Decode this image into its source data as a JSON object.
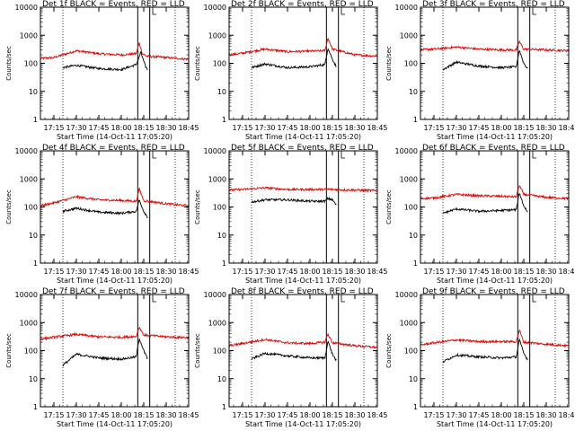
{
  "figure": {
    "background": "#ffffff",
    "axis_color": "#000000"
  },
  "chart_data": {
    "type": "line",
    "x_tick_labels": [
      "17:15",
      "17:30",
      "17:45",
      "18:00",
      "18:15",
      "18:30",
      "18:45"
    ],
    "x_range": [
      "17:06",
      "18:45"
    ],
    "y_scale": "log",
    "y_range": [
      1,
      10000
    ],
    "y_tick_labels": [
      "1",
      "10",
      "100",
      "1000",
      "10000"
    ],
    "ylabel": "Counts/sec",
    "xlabel": "Start Time (14-Oct-11 17:05:20)",
    "series_colors": {
      "Events": "#000000",
      "LLD": "#e00000"
    },
    "markers": {
      "dotted_vertical": [
        "17:21",
        "18:36"
      ],
      "solid_vertical": [
        "18:11",
        "18:19"
      ],
      "small_bracket": "18:21"
    },
    "panels": [
      {
        "title": "Det 1f BLACK = Events, RED = LLD",
        "series": [
          {
            "name": "LLD",
            "x": [
              "17:06",
              "17:15",
              "17:30",
              "17:45",
              "18:00",
              "18:10",
              "18:12",
              "18:14",
              "18:17",
              "18:30",
              "18:45"
            ],
            "y": [
              150,
              160,
              280,
              220,
              200,
              220,
              550,
              220,
              180,
              160,
              140
            ]
          },
          {
            "name": "Events",
            "x": [
              "17:21",
              "17:30",
              "17:45",
              "18:00",
              "18:10",
              "18:12",
              "18:13",
              "18:16",
              "18:18"
            ],
            "y": [
              70,
              85,
              65,
              60,
              90,
              170,
              250,
              80,
              55
            ]
          }
        ]
      },
      {
        "title": "Det 2f BLACK = Events, RED = LLD",
        "series": [
          {
            "name": "LLD",
            "x": [
              "17:06",
              "17:15",
              "17:30",
              "17:45",
              "18:00",
              "18:10",
              "18:12",
              "18:15",
              "18:30",
              "18:45"
            ],
            "y": [
              200,
              230,
              320,
              260,
              270,
              280,
              800,
              320,
              200,
              180
            ]
          },
          {
            "name": "Events",
            "x": [
              "17:21",
              "17:30",
              "17:45",
              "18:00",
              "18:10",
              "18:12",
              "18:15",
              "18:18"
            ],
            "y": [
              70,
              95,
              70,
              75,
              90,
              350,
              140,
              70
            ]
          }
        ]
      },
      {
        "title": "Det 3f BLACK = Events, RED = LLD",
        "series": [
          {
            "name": "LLD",
            "x": [
              "17:06",
              "17:15",
              "17:30",
              "17:45",
              "18:00",
              "18:10",
              "18:12",
              "18:15",
              "18:30",
              "18:45"
            ],
            "y": [
              300,
              320,
              380,
              320,
              300,
              300,
              600,
              320,
              300,
              280
            ]
          },
          {
            "name": "Events",
            "x": [
              "17:21",
              "17:30",
              "17:45",
              "18:00",
              "18:10",
              "18:12",
              "18:15",
              "18:18"
            ],
            "y": [
              60,
              110,
              80,
              70,
              75,
              300,
              100,
              60
            ]
          }
        ]
      },
      {
        "title": "Det 4f BLACK = Events, RED = LLD",
        "series": [
          {
            "name": "LLD",
            "x": [
              "17:06",
              "17:15",
              "17:30",
              "17:45",
              "18:00",
              "18:10",
              "18:12",
              "18:15",
              "18:30",
              "18:45"
            ],
            "y": [
              110,
              140,
              230,
              180,
              170,
              160,
              450,
              170,
              130,
              110
            ]
          },
          {
            "name": "Events",
            "x": [
              "17:21",
              "17:30",
              "17:45",
              "18:00",
              "18:10",
              "18:12",
              "18:15",
              "18:18"
            ],
            "y": [
              70,
              90,
              65,
              60,
              70,
              180,
              70,
              40
            ]
          }
        ]
      },
      {
        "title": "Det 5f BLACK = Events, RED = LLD",
        "series": [
          {
            "name": "LLD",
            "x": [
              "17:06",
              "17:15",
              "17:30",
              "17:45",
              "18:00",
              "18:10",
              "18:12",
              "18:15",
              "18:30",
              "18:45"
            ],
            "y": [
              400,
              420,
              480,
              420,
              420,
              420,
              430,
              420,
              400,
              380
            ]
          },
          {
            "name": "Events",
            "x": [
              "17:21",
              "17:30",
              "17:45",
              "18:00",
              "18:10",
              "18:12",
              "18:15",
              "18:18"
            ],
            "y": [
              150,
              180,
              180,
              160,
              160,
              200,
              180,
              110
            ]
          }
        ]
      },
      {
        "title": "Det 6f BLACK = Events, RED = LLD",
        "series": [
          {
            "name": "LLD",
            "x": [
              "17:06",
              "17:15",
              "17:30",
              "17:45",
              "18:00",
              "18:10",
              "18:12",
              "18:15",
              "18:30",
              "18:45"
            ],
            "y": [
              200,
              210,
              280,
              250,
              240,
              230,
              600,
              280,
              220,
              200
            ]
          },
          {
            "name": "Events",
            "x": [
              "17:21",
              "17:30",
              "17:45",
              "18:00",
              "18:10",
              "18:12",
              "18:15",
              "18:18"
            ],
            "y": [
              60,
              85,
              70,
              75,
              80,
              330,
              110,
              60
            ]
          }
        ]
      },
      {
        "title": "Det 7f BLACK = Events, RED = LLD",
        "series": [
          {
            "name": "LLD",
            "x": [
              "17:06",
              "17:15",
              "17:30",
              "17:45",
              "18:00",
              "18:10",
              "18:12",
              "18:15",
              "18:30",
              "18:45"
            ],
            "y": [
              260,
              300,
              380,
              310,
              300,
              320,
              700,
              360,
              310,
              290
            ]
          },
          {
            "name": "Events",
            "x": [
              "17:21",
              "17:30",
              "17:45",
              "18:00",
              "18:10",
              "18:12",
              "18:15",
              "18:18"
            ],
            "y": [
              30,
              75,
              55,
              50,
              60,
              280,
              100,
              45
            ]
          }
        ]
      },
      {
        "title": "Det 8f BLACK = Events, RED = LLD",
        "series": [
          {
            "name": "LLD",
            "x": [
              "17:06",
              "17:15",
              "17:30",
              "17:45",
              "18:00",
              "18:10",
              "18:12",
              "18:15",
              "18:30",
              "18:45"
            ],
            "y": [
              150,
              180,
              250,
              190,
              180,
              200,
              400,
              190,
              150,
              130
            ]
          },
          {
            "name": "Events",
            "x": [
              "17:21",
              "17:30",
              "17:45",
              "18:00",
              "18:10",
              "18:12",
              "18:15",
              "18:18"
            ],
            "y": [
              50,
              80,
              65,
              55,
              55,
              220,
              75,
              40
            ]
          }
        ]
      },
      {
        "title": "Det 9f BLACK = Events, RED = LLD",
        "series": [
          {
            "name": "LLD",
            "x": [
              "17:06",
              "17:15",
              "17:30",
              "17:45",
              "18:00",
              "18:10",
              "18:12",
              "18:15",
              "18:30",
              "18:45"
            ],
            "y": [
              160,
              190,
              240,
              210,
              210,
              210,
              550,
              200,
              170,
              150
            ]
          },
          {
            "name": "Events",
            "x": [
              "17:21",
              "17:30",
              "17:45",
              "18:00",
              "18:10",
              "18:12",
              "18:15",
              "18:18"
            ],
            "y": [
              40,
              70,
              60,
              55,
              60,
              250,
              80,
              45
            ]
          }
        ]
      }
    ]
  }
}
